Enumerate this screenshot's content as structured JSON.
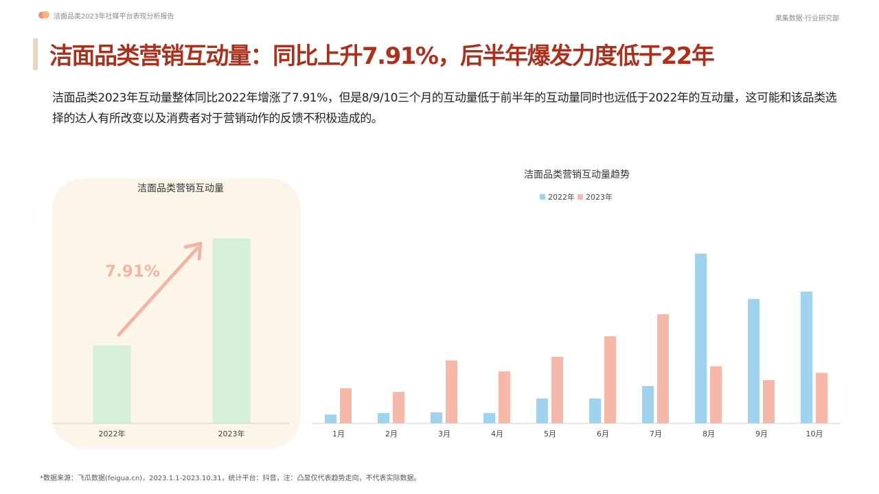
{
  "header": {
    "report_title": "洁面品类2023年社媒平台表现分析报告",
    "org": "果集数据·行业研究部"
  },
  "page_title": "洁面品类营销互动量：同比上升7.91%，后半年爆发力度低于22年",
  "description": "洁面品类2023年互动量整体同比2022年增涨了7.91%，但是8/9/10三个月的互动量低于前半年的互动量同时也远低于2022年的互动量，这可能和该品类选择的达人有所改变以及消费者对于营销动作的反馈不积极造成的。",
  "footnote": "*数据来源：飞瓜数据(feigua.cn)，2023.1.1-2023.10.31，统计平台：抖音，注：凸显仅代表趋势走向，不代表实际数据。",
  "colors": {
    "accent": "#a8321e",
    "bar_2022": "#9fd3ee",
    "bar_2023": "#f5b8a9",
    "annual_bar": "#d6efdb",
    "arrow": "#f2b5a3"
  },
  "chart_data": [
    {
      "type": "bar",
      "title": "洁面品类营销互动量",
      "categories": [
        "2022年",
        "2023年"
      ],
      "values": [
        100,
        237
      ],
      "growth_label": "7.91%",
      "ylim": [
        0,
        255
      ]
    },
    {
      "type": "bar",
      "title": "洁面品类营销互动量趋势",
      "categories": [
        "1月",
        "2月",
        "3月",
        "4月",
        "5月",
        "6月",
        "7月",
        "8月",
        "9月",
        "10月"
      ],
      "series": [
        {
          "name": "2022年",
          "values": [
            12,
            14,
            15,
            14,
            34,
            34,
            51,
            232,
            170,
            180
          ]
        },
        {
          "name": "2023年",
          "values": [
            48,
            43,
            86,
            71,
            91,
            119,
            149,
            78,
            59,
            69
          ]
        }
      ],
      "ylim": [
        0,
        240
      ],
      "legend": "top-center"
    }
  ]
}
